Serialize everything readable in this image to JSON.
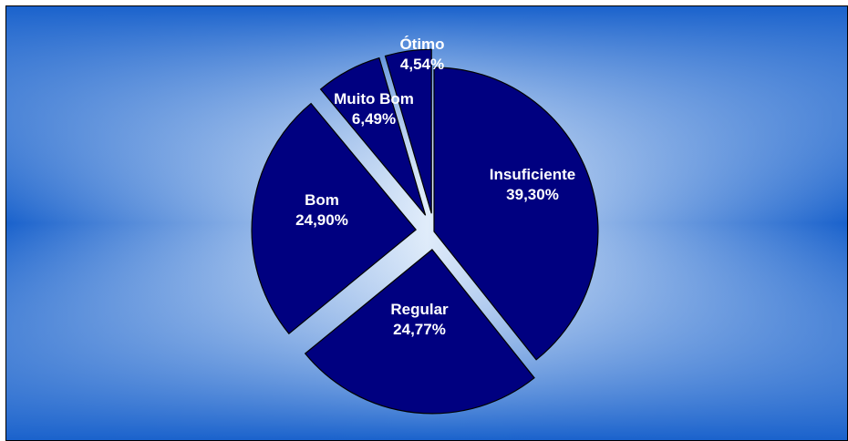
{
  "chart_data": {
    "type": "pie",
    "title": "",
    "start_angle_deg": 0,
    "direction": "clockwise",
    "exploded": true,
    "slices": [
      {
        "label": "Insuficiente",
        "value": 39.3,
        "value_text": "39,30%"
      },
      {
        "label": "Regular",
        "value": 24.77,
        "value_text": "24,77%"
      },
      {
        "label": "Bom",
        "value": 24.9,
        "value_text": "24,90%"
      },
      {
        "label": "Muito Bom",
        "value": 6.49,
        "value_text": "6,49%"
      },
      {
        "label": "Ótimo",
        "value": 4.54,
        "value_text": "4,54%"
      }
    ],
    "colors": {
      "slice_fill": "#000080",
      "slice_stroke": "#000000",
      "label_text": "#ffffff",
      "background_center": "#e0ecfa",
      "background_edge": "#1a62cc"
    },
    "legend": "none",
    "data_labels": "inside"
  }
}
